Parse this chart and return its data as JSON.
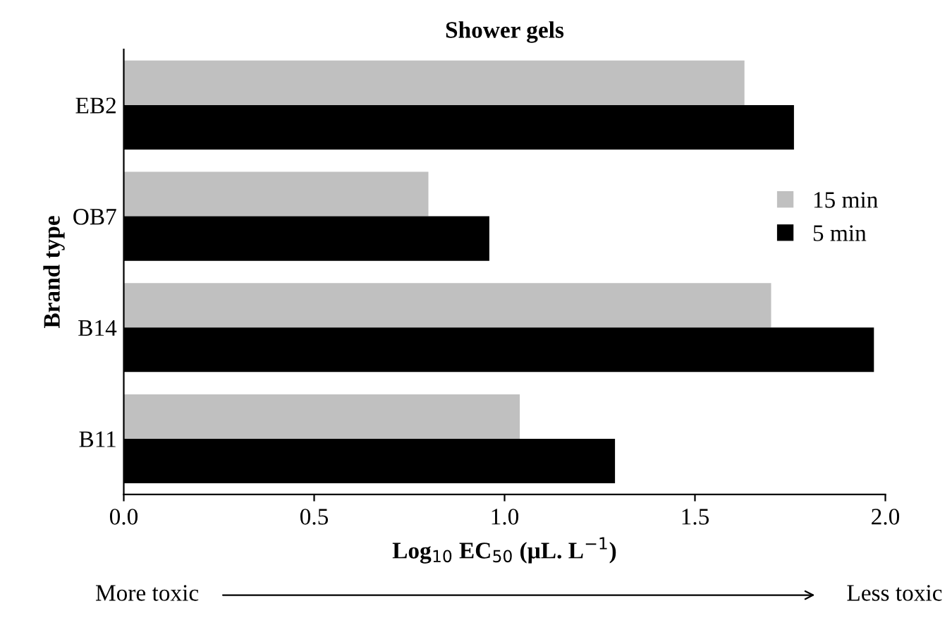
{
  "chart_data": {
    "type": "bar",
    "orientation": "horizontal",
    "title": "Shower gels",
    "xlabel": "Log$_{10}$ EC$_{50}$ (µL. L$^{−1}$)",
    "ylabel": "Brand type",
    "categories": [
      "EB2",
      "OB7",
      "B14",
      "B11"
    ],
    "series": [
      {
        "name": "15 min",
        "color": "#c0c0c0",
        "values": [
          1.63,
          0.8,
          1.7,
          1.04
        ]
      },
      {
        "name": "5 min",
        "color": "#000000",
        "values": [
          1.76,
          0.96,
          1.97,
          1.29
        ]
      }
    ],
    "xlim": [
      0,
      2
    ],
    "xticks": [
      {
        "value": 0,
        "label": "0.0"
      },
      {
        "value": 0.5,
        "label": "0.5"
      },
      {
        "value": 1,
        "label": "1.0"
      },
      {
        "value": 1.5,
        "label": "1.5"
      },
      {
        "value": 2,
        "label": "2.0"
      }
    ],
    "legend": "right",
    "grid": false,
    "annotations": [
      "More toxic",
      "Less toxic"
    ]
  }
}
